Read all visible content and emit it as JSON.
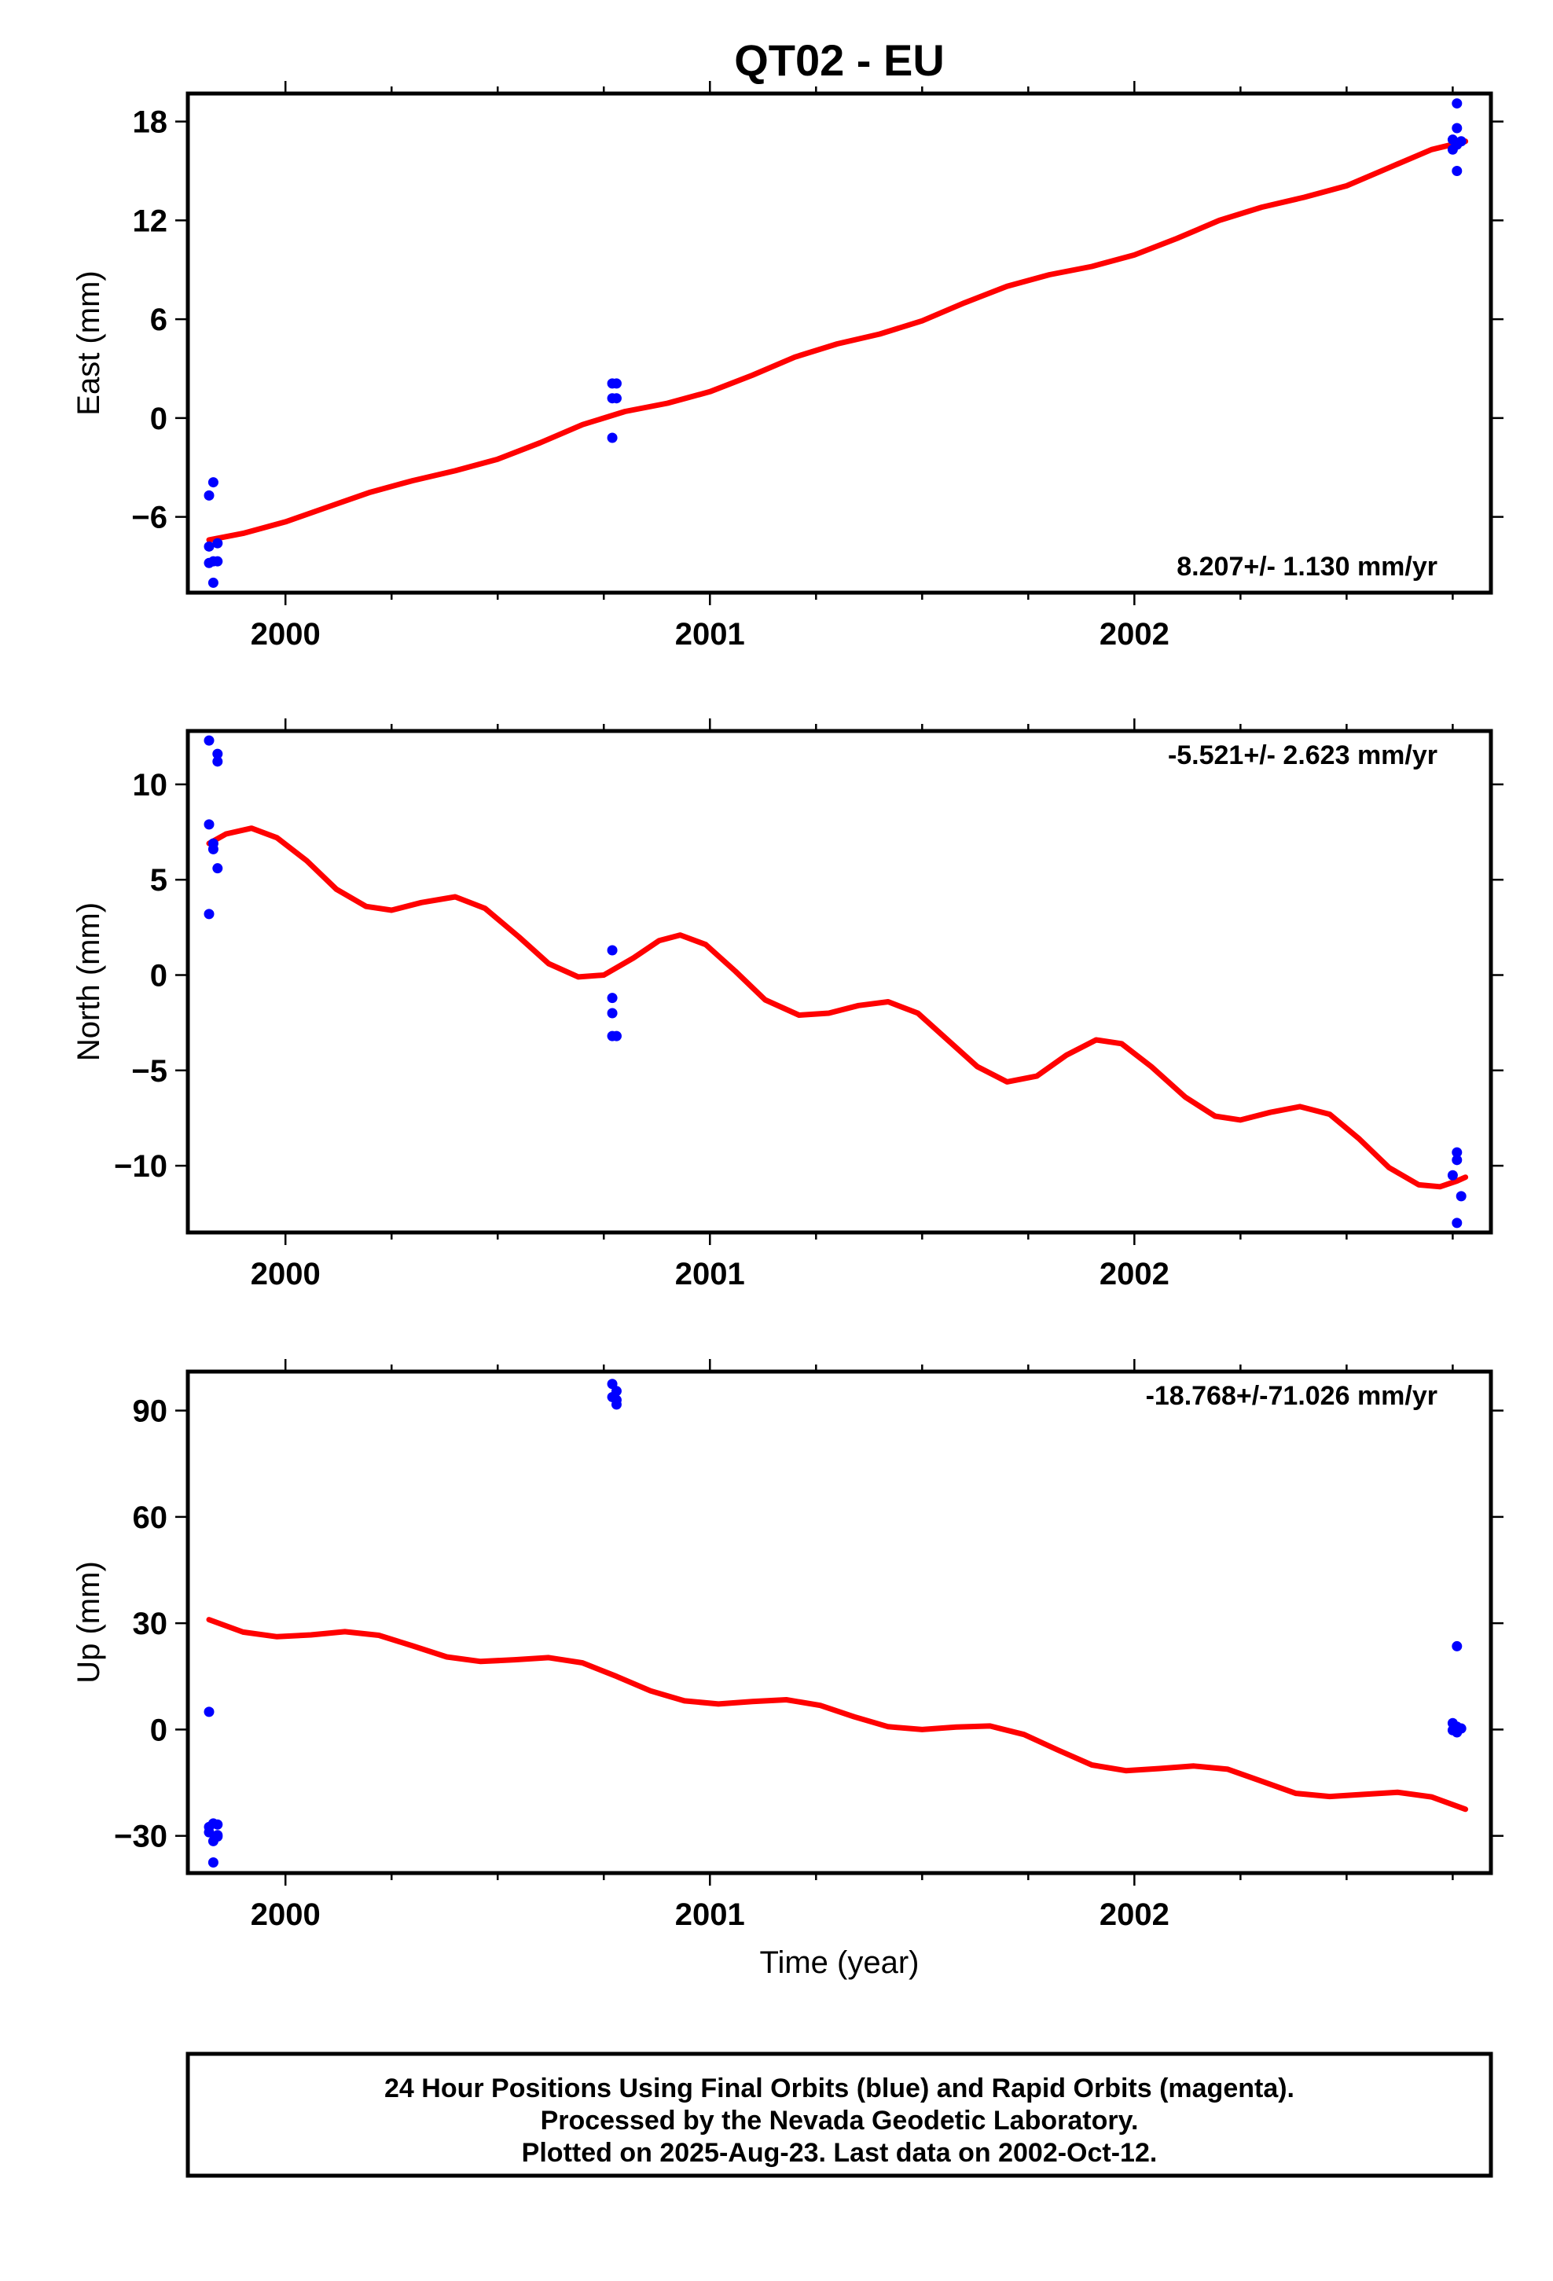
{
  "chart_data": {
    "title": "QT02 - EU",
    "xlabel": "Time (year)",
    "xlim": [
      1999.77,
      2002.84
    ],
    "x_ticks": [
      2000,
      2001,
      2002
    ],
    "x_tick_labels": [
      "2000",
      "2001",
      "2002"
    ],
    "colors": {
      "observed": "#0000ff",
      "model": "#ff0000",
      "frame": "#000000"
    },
    "panels": [
      {
        "type": "scatter",
        "ylabel": "East (mm)",
        "ylim": [
          -10.6,
          19.7
        ],
        "y_ticks": [
          -6,
          0,
          6,
          12,
          18
        ],
        "y_tick_labels": [
          "−6",
          "0",
          "6",
          "12",
          "18"
        ],
        "rate_label": "8.207+/- 1.130 mm/yr",
        "rate_position": "bottom-right",
        "observed": [
          {
            "x": 1999.82,
            "y": -4.7
          },
          {
            "x": 1999.83,
            "y": -3.9
          },
          {
            "x": 1999.82,
            "y": -7.8
          },
          {
            "x": 1999.84,
            "y": -7.6
          },
          {
            "x": 1999.82,
            "y": -8.8
          },
          {
            "x": 1999.83,
            "y": -8.7
          },
          {
            "x": 1999.84,
            "y": -8.7
          },
          {
            "x": 1999.83,
            "y": -10.0
          },
          {
            "x": 2000.77,
            "y": 2.1
          },
          {
            "x": 2000.78,
            "y": 2.1
          },
          {
            "x": 2000.77,
            "y": 1.2
          },
          {
            "x": 2000.78,
            "y": 1.2
          },
          {
            "x": 2000.77,
            "y": -1.2
          },
          {
            "x": 2002.76,
            "y": 19.1
          },
          {
            "x": 2002.76,
            "y": 17.6
          },
          {
            "x": 2002.75,
            "y": 16.9
          },
          {
            "x": 2002.76,
            "y": 16.6
          },
          {
            "x": 2002.77,
            "y": 16.8
          },
          {
            "x": 2002.75,
            "y": 16.3
          },
          {
            "x": 2002.76,
            "y": 15.0
          }
        ],
        "model": [
          {
            "x": 1999.82,
            "y": -7.4
          },
          {
            "x": 1999.9,
            "y": -7.0
          },
          {
            "x": 2000.0,
            "y": -6.3
          },
          {
            "x": 2000.1,
            "y": -5.4
          },
          {
            "x": 2000.2,
            "y": -4.5
          },
          {
            "x": 2000.3,
            "y": -3.8
          },
          {
            "x": 2000.4,
            "y": -3.2
          },
          {
            "x": 2000.5,
            "y": -2.5
          },
          {
            "x": 2000.6,
            "y": -1.5
          },
          {
            "x": 2000.7,
            "y": -0.4
          },
          {
            "x": 2000.8,
            "y": 0.4
          },
          {
            "x": 2000.9,
            "y": 0.9
          },
          {
            "x": 2001.0,
            "y": 1.6
          },
          {
            "x": 2001.1,
            "y": 2.6
          },
          {
            "x": 2001.2,
            "y": 3.7
          },
          {
            "x": 2001.3,
            "y": 4.5
          },
          {
            "x": 2001.4,
            "y": 5.1
          },
          {
            "x": 2001.5,
            "y": 5.9
          },
          {
            "x": 2001.6,
            "y": 7.0
          },
          {
            "x": 2001.7,
            "y": 8.0
          },
          {
            "x": 2001.8,
            "y": 8.7
          },
          {
            "x": 2001.9,
            "y": 9.2
          },
          {
            "x": 2002.0,
            "y": 9.9
          },
          {
            "x": 2002.1,
            "y": 10.9
          },
          {
            "x": 2002.2,
            "y": 12.0
          },
          {
            "x": 2002.3,
            "y": 12.8
          },
          {
            "x": 2002.4,
            "y": 13.4
          },
          {
            "x": 2002.5,
            "y": 14.1
          },
          {
            "x": 2002.6,
            "y": 15.2
          },
          {
            "x": 2002.7,
            "y": 16.3
          },
          {
            "x": 2002.78,
            "y": 16.8
          }
        ]
      },
      {
        "type": "scatter",
        "ylabel": "North (mm)",
        "ylim": [
          -13.5,
          12.8
        ],
        "y_ticks": [
          -10,
          -5,
          0,
          5,
          10
        ],
        "y_tick_labels": [
          "−10",
          "−5",
          "0",
          "5",
          "10"
        ],
        "rate_label": "-5.521+/- 2.623 mm/yr",
        "rate_position": "top-right",
        "observed": [
          {
            "x": 1999.82,
            "y": 12.3
          },
          {
            "x": 1999.84,
            "y": 11.6
          },
          {
            "x": 1999.84,
            "y": 11.2
          },
          {
            "x": 1999.82,
            "y": 7.9
          },
          {
            "x": 1999.83,
            "y": 6.9
          },
          {
            "x": 1999.83,
            "y": 6.6
          },
          {
            "x": 1999.84,
            "y": 5.6
          },
          {
            "x": 1999.82,
            "y": 3.2
          },
          {
            "x": 2000.77,
            "y": 1.3
          },
          {
            "x": 2000.77,
            "y": -1.2
          },
          {
            "x": 2000.77,
            "y": -2.0
          },
          {
            "x": 2000.77,
            "y": -3.2
          },
          {
            "x": 2000.78,
            "y": -3.2
          },
          {
            "x": 2002.76,
            "y": -9.3
          },
          {
            "x": 2002.76,
            "y": -9.7
          },
          {
            "x": 2002.75,
            "y": -10.5
          },
          {
            "x": 2002.77,
            "y": -11.6
          },
          {
            "x": 2002.76,
            "y": -13.0
          }
        ],
        "model": [
          {
            "x": 1999.82,
            "y": 6.9
          },
          {
            "x": 1999.86,
            "y": 7.4
          },
          {
            "x": 1999.92,
            "y": 7.7
          },
          {
            "x": 1999.98,
            "y": 7.2
          },
          {
            "x": 2000.05,
            "y": 6.0
          },
          {
            "x": 2000.12,
            "y": 4.5
          },
          {
            "x": 2000.19,
            "y": 3.6
          },
          {
            "x": 2000.25,
            "y": 3.4
          },
          {
            "x": 2000.32,
            "y": 3.8
          },
          {
            "x": 2000.4,
            "y": 4.1
          },
          {
            "x": 2000.47,
            "y": 3.5
          },
          {
            "x": 2000.55,
            "y": 2.0
          },
          {
            "x": 2000.62,
            "y": 0.6
          },
          {
            "x": 2000.69,
            "y": -0.1
          },
          {
            "x": 2000.75,
            "y": 0.0
          },
          {
            "x": 2000.82,
            "y": 0.9
          },
          {
            "x": 2000.88,
            "y": 1.8
          },
          {
            "x": 2000.93,
            "y": 2.1
          },
          {
            "x": 2000.99,
            "y": 1.6
          },
          {
            "x": 2001.06,
            "y": 0.2
          },
          {
            "x": 2001.13,
            "y": -1.3
          },
          {
            "x": 2001.21,
            "y": -2.1
          },
          {
            "x": 2001.28,
            "y": -2.0
          },
          {
            "x": 2001.35,
            "y": -1.6
          },
          {
            "x": 2001.42,
            "y": -1.4
          },
          {
            "x": 2001.49,
            "y": -2.0
          },
          {
            "x": 2001.56,
            "y": -3.4
          },
          {
            "x": 2001.63,
            "y": -4.8
          },
          {
            "x": 2001.7,
            "y": -5.6
          },
          {
            "x": 2001.77,
            "y": -5.3
          },
          {
            "x": 2001.84,
            "y": -4.2
          },
          {
            "x": 2001.91,
            "y": -3.4
          },
          {
            "x": 2001.97,
            "y": -3.6
          },
          {
            "x": 2002.04,
            "y": -4.8
          },
          {
            "x": 2002.12,
            "y": -6.4
          },
          {
            "x": 2002.19,
            "y": -7.4
          },
          {
            "x": 2002.25,
            "y": -7.6
          },
          {
            "x": 2002.32,
            "y": -7.2
          },
          {
            "x": 2002.39,
            "y": -6.9
          },
          {
            "x": 2002.46,
            "y": -7.3
          },
          {
            "x": 2002.53,
            "y": -8.6
          },
          {
            "x": 2002.6,
            "y": -10.1
          },
          {
            "x": 2002.67,
            "y": -11.0
          },
          {
            "x": 2002.72,
            "y": -11.1
          },
          {
            "x": 2002.76,
            "y": -10.8
          },
          {
            "x": 2002.78,
            "y": -10.6
          }
        ]
      },
      {
        "type": "scatter",
        "ylabel": "Up (mm)",
        "ylim": [
          -40.5,
          101
        ],
        "y_ticks": [
          -30,
          0,
          30,
          60,
          90
        ],
        "y_tick_labels": [
          "−30",
          "0",
          "30",
          "60",
          "90"
        ],
        "rate_label": "-18.768+/-71.026 mm/yr",
        "rate_position": "top-right",
        "observed": [
          {
            "x": 1999.82,
            "y": 5.0
          },
          {
            "x": 1999.82,
            "y": -27.5
          },
          {
            "x": 1999.83,
            "y": -26.5
          },
          {
            "x": 1999.84,
            "y": -26.8
          },
          {
            "x": 1999.82,
            "y": -29.0
          },
          {
            "x": 1999.84,
            "y": -29.8
          },
          {
            "x": 1999.83,
            "y": -31.5
          },
          {
            "x": 1999.84,
            "y": -30.2
          },
          {
            "x": 1999.83,
            "y": -37.5
          },
          {
            "x": 2000.77,
            "y": 97.5
          },
          {
            "x": 2000.78,
            "y": 95.5
          },
          {
            "x": 2000.77,
            "y": 93.8
          },
          {
            "x": 2000.78,
            "y": 93.0
          },
          {
            "x": 2000.78,
            "y": 91.7
          },
          {
            "x": 2002.76,
            "y": 23.5
          },
          {
            "x": 2002.75,
            "y": 1.8
          },
          {
            "x": 2002.76,
            "y": 0.8
          },
          {
            "x": 2002.77,
            "y": 0.3
          },
          {
            "x": 2002.75,
            "y": -0.2
          },
          {
            "x": 2002.76,
            "y": -0.8
          }
        ],
        "model": [
          {
            "x": 1999.82,
            "y": 31.0
          },
          {
            "x": 1999.9,
            "y": 27.5
          },
          {
            "x": 1999.98,
            "y": 26.2
          },
          {
            "x": 2000.06,
            "y": 26.7
          },
          {
            "x": 2000.14,
            "y": 27.6
          },
          {
            "x": 2000.22,
            "y": 26.6
          },
          {
            "x": 2000.3,
            "y": 23.6
          },
          {
            "x": 2000.38,
            "y": 20.5
          },
          {
            "x": 2000.46,
            "y": 19.2
          },
          {
            "x": 2000.54,
            "y": 19.7
          },
          {
            "x": 2000.62,
            "y": 20.3
          },
          {
            "x": 2000.7,
            "y": 18.8
          },
          {
            "x": 2000.78,
            "y": 15.0
          },
          {
            "x": 2000.86,
            "y": 10.9
          },
          {
            "x": 2000.94,
            "y": 8.1
          },
          {
            "x": 2001.02,
            "y": 7.2
          },
          {
            "x": 2001.1,
            "y": 7.9
          },
          {
            "x": 2001.18,
            "y": 8.4
          },
          {
            "x": 2001.26,
            "y": 6.8
          },
          {
            "x": 2001.34,
            "y": 3.6
          },
          {
            "x": 2001.42,
            "y": 0.8
          },
          {
            "x": 2001.5,
            "y": 0.0
          },
          {
            "x": 2001.58,
            "y": 0.7
          },
          {
            "x": 2001.66,
            "y": 1.0
          },
          {
            "x": 2001.74,
            "y": -1.4
          },
          {
            "x": 2001.82,
            "y": -5.8
          },
          {
            "x": 2001.9,
            "y": -10.0
          },
          {
            "x": 2001.98,
            "y": -11.6
          },
          {
            "x": 2002.06,
            "y": -11.0
          },
          {
            "x": 2002.14,
            "y": -10.3
          },
          {
            "x": 2002.22,
            "y": -11.2
          },
          {
            "x": 2002.3,
            "y": -14.6
          },
          {
            "x": 2002.38,
            "y": -18.0
          },
          {
            "x": 2002.46,
            "y": -18.9
          },
          {
            "x": 2002.54,
            "y": -18.3
          },
          {
            "x": 2002.62,
            "y": -17.7
          },
          {
            "x": 2002.7,
            "y": -19.0
          },
          {
            "x": 2002.78,
            "y": -22.5
          }
        ]
      }
    ]
  },
  "footer": {
    "line1": "24 Hour Positions Using Final Orbits (blue) and Rapid Orbits (magenta).",
    "line2": "Processed by the Nevada Geodetic Laboratory.",
    "line3": "Plotted on 2025-Aug-23. Last data on 2002-Oct-12."
  }
}
